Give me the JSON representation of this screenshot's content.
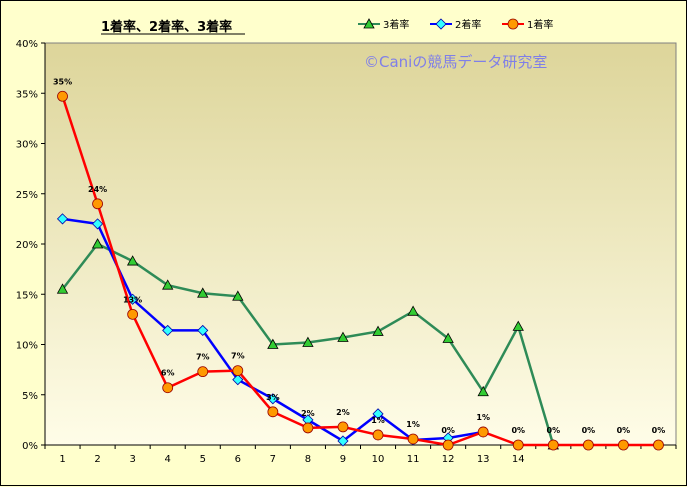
{
  "chart_data": {
    "type": "line",
    "title": "1着率、2着率、3着率",
    "watermark": "©Caniの競馬データ研究室",
    "categories": [
      "1",
      "2",
      "3",
      "4",
      "5",
      "6",
      "7",
      "8",
      "9",
      "10",
      "11",
      "12",
      "13",
      "14",
      "",
      "",
      "",
      ""
    ],
    "ylim": [
      0,
      40
    ],
    "yticks": [
      "0%",
      "5%",
      "10%",
      "15%",
      "20%",
      "25%",
      "30%",
      "35%",
      "40%"
    ],
    "grid": false,
    "legend_position": "top-right",
    "series": [
      {
        "name": "3着率",
        "color": "#2e8b57",
        "marker": "triangle",
        "values": [
          15.5,
          20.0,
          18.3,
          15.9,
          15.1,
          14.8,
          10.0,
          10.2,
          10.7,
          11.3,
          13.3,
          10.6,
          5.3,
          11.8,
          0,
          null,
          null,
          null
        ]
      },
      {
        "name": "2着率",
        "color": "#0000ff",
        "marker": "diamond",
        "values": [
          22.5,
          22.0,
          14.5,
          11.4,
          11.4,
          6.5,
          4.6,
          2.5,
          0.4,
          3.1,
          0.5,
          0.7,
          1.3,
          null,
          null,
          null,
          null,
          null
        ]
      },
      {
        "name": "1着率",
        "color": "#ff0000",
        "marker": "circle",
        "values": [
          34.7,
          24.0,
          13.0,
          5.7,
          7.3,
          7.4,
          3.3,
          1.7,
          1.8,
          1.0,
          0.6,
          0.0,
          1.3,
          0.0,
          0.0,
          0.0,
          0.0,
          0.0
        ],
        "labels": [
          "35%",
          "24%",
          "13%",
          "6%",
          "7%",
          "7%",
          "3%",
          "2%",
          "2%",
          "1%",
          "1%",
          "0%",
          "1%",
          "0%",
          "0%",
          "0%",
          "0%",
          "0%"
        ]
      }
    ]
  }
}
